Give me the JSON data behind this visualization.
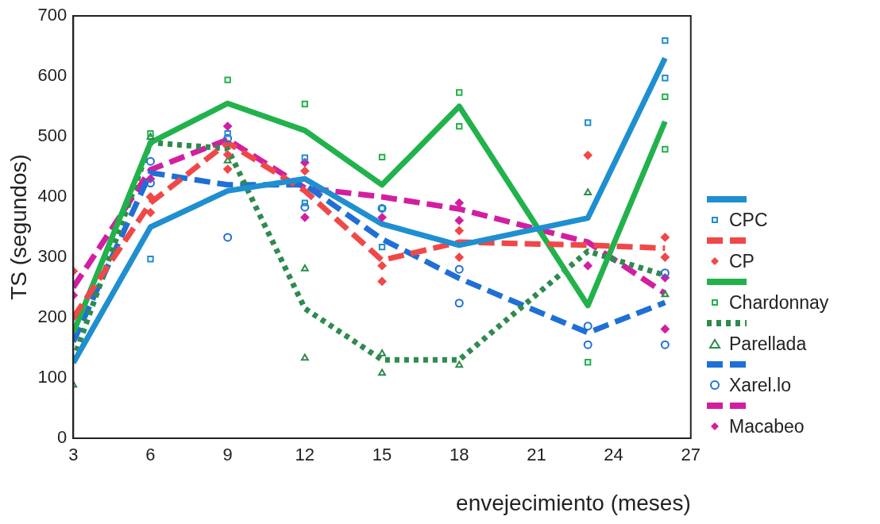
{
  "chart_data": {
    "type": "line",
    "xlabel": "envejecimiento (meses)",
    "ylabel": "TS (segundos)",
    "x": [
      3,
      6,
      9,
      12,
      15,
      18,
      23,
      26
    ],
    "xlim": [
      3,
      27
    ],
    "xticks": [
      3,
      6,
      9,
      12,
      15,
      18,
      21,
      24,
      27
    ],
    "ylim": [
      0,
      700
    ],
    "yticks": [
      0,
      100,
      200,
      300,
      400,
      500,
      600,
      700
    ],
    "grid": false,
    "legend": "right",
    "series": [
      {
        "type": "line",
        "color": "#1f8fd0",
        "line_style": "solid",
        "marker": "none",
        "values": [
          125,
          350,
          410,
          430,
          355,
          320,
          365,
          630
        ]
      },
      {
        "type": "scatter",
        "name": "CPC",
        "color": "#1f8fd0",
        "marker": "square",
        "x": [
          6,
          9,
          12,
          12,
          15,
          15,
          23,
          26,
          26
        ],
        "values": [
          297,
          505,
          465,
          390,
          381,
          317,
          523,
          659,
          597
        ]
      },
      {
        "type": "line",
        "color": "#f04848",
        "line_style": "dashed",
        "marker": "none",
        "values": [
          200,
          390,
          490,
          410,
          295,
          325,
          320,
          315
        ]
      },
      {
        "type": "scatter",
        "name": "CP",
        "color": "#f04848",
        "marker": "diamond",
        "x": [
          3,
          3,
          6,
          6,
          9,
          9,
          12,
          15,
          15,
          18,
          18,
          23,
          26,
          26
        ],
        "values": [
          277,
          201,
          374,
          400,
          446,
          470,
          443,
          286,
          260,
          344,
          300,
          469,
          333,
          300
        ]
      },
      {
        "type": "line",
        "color": "#22b24c",
        "line_style": "solid",
        "marker": "none",
        "values": [
          175,
          490,
          555,
          510,
          420,
          550,
          220,
          525
        ]
      },
      {
        "type": "scatter",
        "name": "Chardonnay",
        "color": "#22b24c",
        "marker": "square",
        "x": [
          6,
          9,
          12,
          15,
          18,
          18,
          23,
          26,
          26
        ],
        "values": [
          505,
          594,
          554,
          466,
          573,
          517,
          126,
          566,
          479
        ]
      },
      {
        "type": "line",
        "color": "#2e8b4e",
        "line_style": "dotted",
        "marker": "none",
        "values": [
          130,
          490,
          480,
          215,
          130,
          130,
          310,
          270
        ]
      },
      {
        "type": "scatter",
        "name": "Parellada",
        "color": "#2e8b4e",
        "marker": "triangle",
        "x": [
          3,
          6,
          9,
          12,
          12,
          15,
          15,
          18,
          23,
          26
        ],
        "values": [
          88,
          499,
          460,
          281,
          133,
          140,
          108,
          121,
          407,
          238
        ]
      },
      {
        "type": "line",
        "color": "#1f6fd6",
        "line_style": "dashed",
        "marker": "none",
        "values": [
          160,
          440,
          420,
          420,
          330,
          265,
          175,
          225
        ]
      },
      {
        "type": "scatter",
        "name": "Xarel.lo",
        "color": "#1f6fd6",
        "marker": "circle",
        "x": [
          6,
          6,
          9,
          9,
          12,
          15,
          18,
          18,
          23,
          23,
          26,
          26
        ],
        "values": [
          459,
          423,
          333,
          497,
          383,
          381,
          280,
          224,
          186,
          155,
          274,
          155
        ]
      },
      {
        "type": "line",
        "color": "#d21fa0",
        "line_style": "dashed",
        "marker": "none",
        "values": [
          250,
          445,
          495,
          415,
          400,
          380,
          325,
          240
        ]
      },
      {
        "type": "scatter",
        "name": "Macabeo",
        "color": "#d21fa0",
        "marker": "diamond",
        "x": [
          3,
          6,
          9,
          12,
          12,
          15,
          18,
          18,
          23,
          26,
          26
        ],
        "values": [
          237,
          430,
          517,
          457,
          366,
          366,
          390,
          361,
          286,
          266,
          181
        ]
      }
    ]
  }
}
